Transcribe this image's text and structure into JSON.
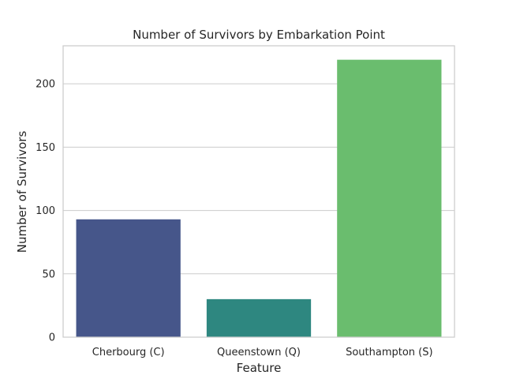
{
  "chart_data": {
    "type": "bar",
    "title": "Number of Survivors by Embarkation Point",
    "xlabel": "Feature",
    "ylabel": "Number of Survivors",
    "categories": [
      "Cherbourg (C)",
      "Queenstown (Q)",
      "Southampton (S)"
    ],
    "values": [
      93,
      30,
      219
    ],
    "ylim": [
      0,
      230
    ],
    "yticks": [
      0,
      50,
      100,
      150,
      200
    ],
    "grid": true,
    "bar_colors": [
      "#46568a",
      "#2e8780",
      "#6abd6e"
    ],
    "grid_color": "#cccccc",
    "frame_color": "#cccccc"
  }
}
